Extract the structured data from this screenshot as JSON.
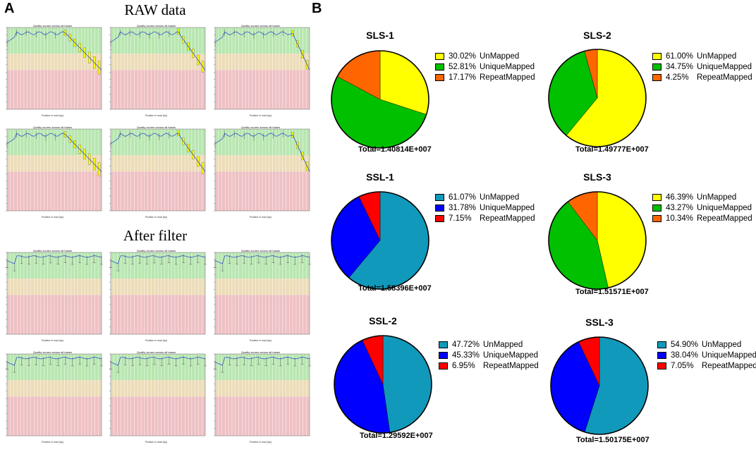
{
  "panels": {
    "a_label": "A",
    "b_label": "B",
    "raw_title": "RAW data",
    "filter_title": "After filter"
  },
  "quality_plot": {
    "title": "Quality scores across all bases",
    "xlabel": "Position in read (bp)"
  },
  "colors": {
    "UnMapped_yellow": "#ffff00",
    "UniqueMapped_green": "#00c000",
    "RepeatMapped_orange": "#ff6600",
    "UnMapped_teal": "#1199bb",
    "UniqueMapped_blue": "#0000ff",
    "RepeatMapped_red": "#ff0000",
    "zone_green": "#b8e6b0",
    "zone_beige": "#ecdcb8",
    "zone_red": "#eec0c4"
  },
  "chart_data": [
    {
      "type": "pie",
      "title": "SLS-1",
      "total": "Total=1.40814E+007",
      "palette": "sls",
      "slices": [
        {
          "label": "UnMapped",
          "pct_text": "30.02%",
          "value": 30.02
        },
        {
          "label": "UniqueMapped",
          "pct_text": "52.81%",
          "value": 52.81
        },
        {
          "label": "RepeatMapped",
          "pct_text": "17.17%",
          "value": 17.17
        }
      ]
    },
    {
      "type": "pie",
      "title": "SLS-2",
      "total": "Total=1.49777E+007",
      "palette": "sls",
      "slices": [
        {
          "label": "UnMapped",
          "pct_text": "61.00%",
          "value": 61.0
        },
        {
          "label": "UniqueMapped",
          "pct_text": "34.75%",
          "value": 34.75
        },
        {
          "label": "RepeatMapped",
          "pct_text": "4.25%",
          "value": 4.25
        }
      ]
    },
    {
      "type": "pie",
      "title": "SSL-1",
      "total": "Total=1.58396E+007",
      "palette": "ssl",
      "slices": [
        {
          "label": "UnMapped",
          "pct_text": "61.07%",
          "value": 61.07
        },
        {
          "label": "UniqueMapped",
          "pct_text": "31.78%",
          "value": 31.78
        },
        {
          "label": "RepeatMapped",
          "pct_text": "7.15%",
          "value": 7.15
        }
      ]
    },
    {
      "type": "pie",
      "title": "SLS-3",
      "total": "Total=1.51571E+007",
      "palette": "sls",
      "slices": [
        {
          "label": "UnMapped",
          "pct_text": "46.39%",
          "value": 46.39
        },
        {
          "label": "UniqueMapped",
          "pct_text": "43.27%",
          "value": 43.27
        },
        {
          "label": "RepeatMapped",
          "pct_text": "10.34%",
          "value": 10.34
        }
      ]
    },
    {
      "type": "pie",
      "title": "SSL-2",
      "total": "Total=1.29592E+007",
      "palette": "ssl",
      "slices": [
        {
          "label": "UnMapped",
          "pct_text": "47.72%",
          "value": 47.72
        },
        {
          "label": "UniqueMapped",
          "pct_text": "45.33%",
          "value": 45.33
        },
        {
          "label": "RepeatMapped",
          "pct_text": "6.95%",
          "value": 6.95
        }
      ]
    },
    {
      "type": "pie",
      "title": "SSL-3",
      "total": "Total=1.50175E+007",
      "palette": "ssl",
      "slices": [
        {
          "label": "UnMapped",
          "pct_text": "54.90%",
          "value": 54.9
        },
        {
          "label": "UniqueMapped",
          "pct_text": "38.04%",
          "value": 38.04
        },
        {
          "label": "RepeatMapped",
          "pct_text": "7.05%",
          "value": 7.05
        }
      ]
    }
  ]
}
